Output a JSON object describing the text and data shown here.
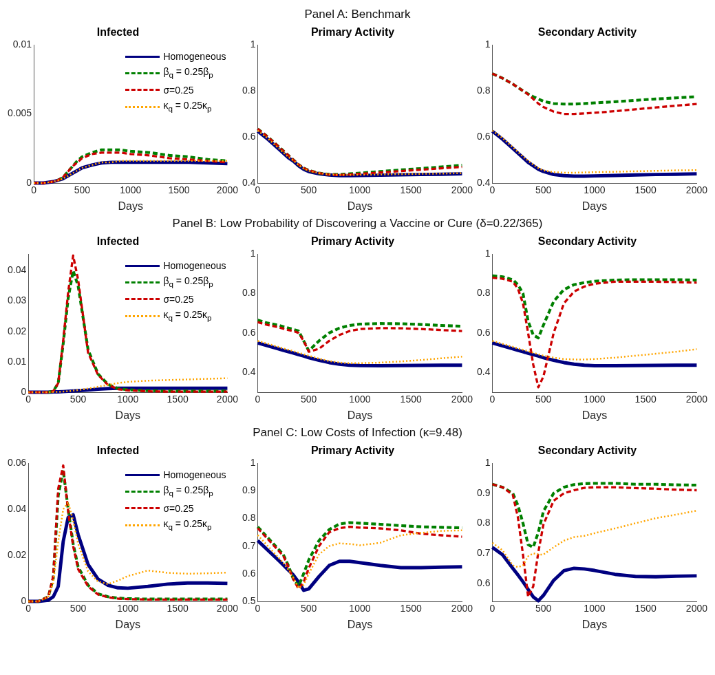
{
  "chart_data": [
    {
      "type": "line",
      "title": "Infected",
      "xlabel": "Days",
      "legend": "top right",
      "xlim": [
        0,
        2000
      ],
      "xticks": [
        0,
        500,
        1000,
        1500,
        2000
      ],
      "ylim": [
        0,
        0.01
      ],
      "yticks": [
        0,
        0.005,
        0.01
      ],
      "x": [
        0,
        100,
        200,
        250,
        300,
        350,
        400,
        450,
        500,
        600,
        700,
        800,
        900,
        1000,
        1200,
        1400,
        1600,
        1800,
        2000
      ],
      "series": [
        {
          "name": "Homogeneous",
          "color": "#000080",
          "line_style": "solid",
          "values": [
            0,
            0,
            0.0001,
            0.0002,
            0.0003,
            0.0005,
            0.0007,
            0.0009,
            0.0011,
            0.0013,
            0.00145,
            0.0015,
            0.0015,
            0.0015,
            0.0015,
            0.0015,
            0.0015,
            0.00145,
            0.0014
          ]
        },
        {
          "name": "β$_{q}$ = 0.25β$_{p}$",
          "color": "#008000",
          "line_style": "dashed",
          "values": [
            null,
            null,
            null,
            0.0002,
            0.0004,
            0.0008,
            0.0012,
            0.0016,
            0.0019,
            0.0022,
            0.0024,
            0.0024,
            0.0024,
            0.0023,
            0.0022,
            0.002,
            0.0019,
            0.0017,
            0.0016
          ]
        },
        {
          "name": "σ=0.25",
          "color": "#cc0000",
          "line_style": "dashed",
          "values": [
            0,
            0,
            0.0001,
            0.0002,
            0.0004,
            0.0008,
            0.0012,
            0.0015,
            0.0018,
            0.0021,
            0.0022,
            0.0022,
            0.0022,
            0.0021,
            0.002,
            0.0018,
            0.0017,
            0.0016,
            0.0015
          ]
        },
        {
          "name": "κ$_{q}$ = 0.25κ$_{p}$",
          "color": "#ffa500",
          "line_style": "dotted",
          "values": [
            0,
            0,
            0.0001,
            0.0002,
            0.0003,
            0.0005,
            0.0007,
            0.0009,
            0.0011,
            0.0013,
            0.0015,
            0.0015,
            0.0016,
            0.0016,
            0.0016,
            0.0016,
            0.0016,
            0.0016,
            0.0016
          ]
        }
      ]
    },
    {
      "type": "line",
      "title": "Primary Activity",
      "subtitle": "Panel A: Benchmark",
      "xlabel": "Days",
      "xlim": [
        0,
        2000
      ],
      "xticks": [
        0,
        500,
        1000,
        1500,
        2000
      ],
      "ylim": [
        0.4,
        1
      ],
      "yticks": [
        0.4,
        0.6,
        0.8,
        1
      ],
      "x": [
        0,
        100,
        200,
        250,
        300,
        350,
        400,
        450,
        500,
        600,
        700,
        800,
        900,
        1000,
        1200,
        1400,
        1600,
        1800,
        2000
      ],
      "series": [
        {
          "color": "#000080",
          "line_style": "solid",
          "values": [
            0.625,
            0.59,
            0.55,
            0.53,
            0.51,
            0.495,
            0.475,
            0.46,
            0.45,
            0.44,
            0.435,
            0.432,
            0.432,
            0.433,
            0.434,
            0.436,
            0.437,
            0.438,
            0.44
          ]
        },
        {
          "color": "#008000",
          "line_style": "dashed",
          "values": [
            0.635,
            0.6,
            0.56,
            0.54,
            0.52,
            0.5,
            0.48,
            0.465,
            0.455,
            0.443,
            0.437,
            0.437,
            0.44,
            0.443,
            0.45,
            0.457,
            0.463,
            0.47,
            0.477
          ]
        },
        {
          "color": "#cc0000",
          "line_style": "dashed",
          "values": [
            0.635,
            0.6,
            0.56,
            0.54,
            0.52,
            0.5,
            0.48,
            0.465,
            0.455,
            0.443,
            0.436,
            0.435,
            0.437,
            0.44,
            0.446,
            0.452,
            0.458,
            0.464,
            0.47
          ]
        },
        {
          "color": "#ffa500",
          "line_style": "dotted",
          "values": [
            0.628,
            0.593,
            0.553,
            0.533,
            0.513,
            0.498,
            0.478,
            0.463,
            0.453,
            0.443,
            0.438,
            0.435,
            0.435,
            0.436,
            0.437,
            0.439,
            0.44,
            0.441,
            0.443
          ]
        }
      ]
    },
    {
      "type": "line",
      "title": "Secondary Activity",
      "xlabel": "Days",
      "xlim": [
        0,
        2000
      ],
      "xticks": [
        0,
        500,
        1000,
        1500,
        2000
      ],
      "ylim": [
        0.4,
        1
      ],
      "yticks": [
        0.4,
        0.6,
        0.8,
        1
      ],
      "x": [
        0,
        100,
        200,
        250,
        300,
        350,
        400,
        450,
        500,
        600,
        700,
        800,
        900,
        1000,
        1200,
        1400,
        1600,
        1800,
        2000
      ],
      "series": [
        {
          "color": "#000080",
          "line_style": "solid",
          "values": [
            0.625,
            0.59,
            0.55,
            0.53,
            0.51,
            0.49,
            0.475,
            0.46,
            0.45,
            0.437,
            0.432,
            0.43,
            0.43,
            0.431,
            0.433,
            0.435,
            0.437,
            0.438,
            0.44
          ]
        },
        {
          "color": "#008000",
          "line_style": "dashed",
          "values": [
            0.875,
            0.855,
            0.83,
            0.815,
            0.8,
            0.787,
            0.775,
            0.765,
            0.755,
            0.745,
            0.743,
            0.743,
            0.745,
            0.748,
            0.753,
            0.759,
            0.765,
            0.77,
            0.775
          ]
        },
        {
          "color": "#cc0000",
          "line_style": "dashed",
          "values": [
            0.875,
            0.855,
            0.83,
            0.815,
            0.8,
            0.785,
            0.765,
            0.745,
            0.73,
            0.71,
            0.7,
            0.7,
            0.702,
            0.705,
            0.712,
            0.72,
            0.728,
            0.736,
            0.743
          ]
        },
        {
          "color": "#ffa500",
          "line_style": "dotted",
          "values": [
            0.628,
            0.595,
            0.555,
            0.535,
            0.515,
            0.497,
            0.48,
            0.465,
            0.455,
            0.447,
            0.445,
            0.445,
            0.446,
            0.447,
            0.449,
            0.451,
            0.453,
            0.455,
            0.456
          ]
        }
      ]
    },
    {
      "type": "line",
      "title": "Infected",
      "xlabel": "Days",
      "legend": "top right",
      "xlim": [
        0,
        2000
      ],
      "xticks": [
        0,
        500,
        1000,
        1500,
        2000
      ],
      "ylim": [
        0,
        0.0455
      ],
      "yticks": [
        0,
        0.01,
        0.02,
        0.03,
        0.04
      ],
      "x": [
        0,
        100,
        200,
        250,
        300,
        350,
        400,
        450,
        500,
        600,
        700,
        800,
        900,
        1000,
        1200,
        1400,
        1600,
        1800,
        2000
      ],
      "series": [
        {
          "name": "Homogeneous",
          "color": "#000080",
          "line_style": "solid",
          "values": [
            0,
            0,
            0,
            0.0001,
            0.0001,
            0.0002,
            0.0003,
            0.0004,
            0.0005,
            0.0007,
            0.001,
            0.0012,
            0.0013,
            0.0013,
            0.0013,
            0.0013,
            0.0013,
            0.0013,
            0.0013
          ]
        },
        {
          "name": "β$_{q}$ = 0.25β$_{p}$",
          "color": "#008000",
          "line_style": "dashed",
          "values": [
            null,
            null,
            0,
            0.0003,
            0.003,
            0.016,
            0.031,
            0.04,
            0.035,
            0.014,
            0.006,
            0.0026,
            0.0012,
            0.0008,
            0.0005,
            0.0004,
            0.0004,
            0.0004,
            0.0004
          ]
        },
        {
          "name": "σ=0.25",
          "color": "#cc0000",
          "line_style": "dashed",
          "values": [
            0,
            0,
            0,
            0.0003,
            0.003,
            0.017,
            0.033,
            0.045,
            0.037,
            0.013,
            0.0057,
            0.0024,
            0.001,
            0.0006,
            0.0003,
            0.0002,
            0.0002,
            0.0002,
            0.0002
          ]
        },
        {
          "name": "κ$_{q}$ = 0.25κ$_{p}$",
          "color": "#ffa500",
          "line_style": "dotted",
          "values": [
            0,
            0,
            0,
            0.0001,
            0.0001,
            0.0002,
            0.0003,
            0.0005,
            0.0007,
            0.0012,
            0.0018,
            0.0024,
            0.003,
            0.0034,
            0.0038,
            0.004,
            0.0042,
            0.0044,
            0.0046
          ]
        }
      ]
    },
    {
      "type": "line",
      "title": "Primary Activity",
      "subtitle": "Panel B: Low Probability of Discovering a Vaccine or Cure (δ=0.22/365)",
      "xlabel": "Days",
      "xlim": [
        0,
        2000
      ],
      "xticks": [
        0,
        500,
        1000,
        1500,
        2000
      ],
      "ylim": [
        0.3,
        1
      ],
      "yticks": [
        0.4,
        0.6,
        0.8,
        1
      ],
      "x": [
        0,
        100,
        200,
        250,
        300,
        350,
        400,
        450,
        500,
        600,
        700,
        800,
        900,
        1000,
        1200,
        1400,
        1600,
        1800,
        2000
      ],
      "series": [
        {
          "color": "#000080",
          "line_style": "solid",
          "values": [
            0.55,
            0.535,
            0.52,
            0.512,
            0.505,
            0.498,
            0.49,
            0.483,
            0.475,
            0.462,
            0.45,
            0.442,
            0.437,
            0.435,
            0.434,
            0.435,
            0.436,
            0.437,
            0.437
          ]
        },
        {
          "color": "#008000",
          "line_style": "dashed",
          "values": [
            0.665,
            0.65,
            0.64,
            0.632,
            0.625,
            0.618,
            0.61,
            0.56,
            0.51,
            0.56,
            0.6,
            0.625,
            0.638,
            0.645,
            0.648,
            0.647,
            0.643,
            0.638,
            0.634
          ]
        },
        {
          "color": "#cc0000",
          "line_style": "dashed",
          "values": [
            0.655,
            0.64,
            0.63,
            0.622,
            0.615,
            0.61,
            0.6,
            0.56,
            0.505,
            0.52,
            0.56,
            0.59,
            0.61,
            0.62,
            0.625,
            0.624,
            0.62,
            0.615,
            0.61
          ]
        },
        {
          "color": "#ffa500",
          "line_style": "dotted",
          "values": [
            0.56,
            0.545,
            0.53,
            0.522,
            0.515,
            0.508,
            0.5,
            0.492,
            0.485,
            0.47,
            0.458,
            0.45,
            0.447,
            0.447,
            0.45,
            0.456,
            0.463,
            0.472,
            0.48
          ]
        }
      ]
    },
    {
      "type": "line",
      "title": "Secondary Activity",
      "xlabel": "Days",
      "xlim": [
        0,
        2000
      ],
      "xticks": [
        0,
        500,
        1000,
        1500,
        2000
      ],
      "ylim": [
        0.3,
        1
      ],
      "yticks": [
        0.4,
        0.6,
        0.8,
        1
      ],
      "x": [
        0,
        100,
        200,
        250,
        300,
        350,
        400,
        450,
        500,
        600,
        700,
        800,
        900,
        1000,
        1200,
        1400,
        1600,
        1800,
        2000
      ],
      "series": [
        {
          "color": "#000080",
          "line_style": "solid",
          "values": [
            0.55,
            0.535,
            0.52,
            0.512,
            0.505,
            0.497,
            0.49,
            0.483,
            0.475,
            0.462,
            0.45,
            0.442,
            0.437,
            0.434,
            0.434,
            0.435,
            0.436,
            0.437,
            0.437
          ]
        },
        {
          "color": "#008000",
          "line_style": "dashed",
          "values": [
            0.89,
            0.885,
            0.87,
            0.845,
            0.8,
            0.66,
            0.59,
            0.575,
            0.64,
            0.76,
            0.82,
            0.845,
            0.855,
            0.862,
            0.868,
            0.87,
            0.87,
            0.87,
            0.868
          ]
        },
        {
          "color": "#cc0000",
          "line_style": "dashed",
          "values": [
            0.88,
            0.875,
            0.86,
            0.825,
            0.75,
            0.6,
            0.44,
            0.325,
            0.38,
            0.6,
            0.75,
            0.81,
            0.835,
            0.85,
            0.86,
            0.86,
            0.86,
            0.858,
            0.855
          ]
        },
        {
          "color": "#ffa500",
          "line_style": "dotted",
          "values": [
            0.56,
            0.545,
            0.53,
            0.522,
            0.515,
            0.508,
            0.5,
            0.492,
            0.485,
            0.475,
            0.468,
            0.466,
            0.466,
            0.468,
            0.475,
            0.485,
            0.495,
            0.505,
            0.518
          ]
        }
      ]
    },
    {
      "type": "line",
      "title": "Infected",
      "xlabel": "Days",
      "legend": "top right",
      "xlim": [
        0,
        2000
      ],
      "xticks": [
        0,
        500,
        1000,
        1500,
        2000
      ],
      "ylim": [
        0,
        0.06
      ],
      "yticks": [
        0,
        0.02,
        0.04,
        0.06
      ],
      "x": [
        0,
        100,
        200,
        250,
        300,
        350,
        400,
        450,
        500,
        600,
        700,
        800,
        900,
        1000,
        1200,
        1400,
        1600,
        1800,
        2000
      ],
      "series": [
        {
          "name": "Homogeneous",
          "color": "#000080",
          "line_style": "solid",
          "values": [
            0,
            0,
            0.0005,
            0.002,
            0.0065,
            0.026,
            0.0365,
            0.0376,
            0.029,
            0.016,
            0.0097,
            0.007,
            0.0059,
            0.0057,
            0.0065,
            0.0075,
            0.008,
            0.008,
            0.0078
          ]
        },
        {
          "name": "β$_{q}$ = 0.25β$_{p}$",
          "color": "#008000",
          "line_style": "dashed",
          "values": [
            0,
            0,
            0.002,
            0.01,
            0.046,
            0.057,
            0.04,
            0.025,
            0.015,
            0.007,
            0.0033,
            0.002,
            0.0014,
            0.0012,
            0.001,
            0.001,
            0.001,
            0.001,
            0.001
          ]
        },
        {
          "name": "σ=0.25",
          "color": "#cc0000",
          "line_style": "dashed",
          "values": [
            0,
            0,
            0.002,
            0.011,
            0.049,
            0.059,
            0.039,
            0.024,
            0.014,
            0.0065,
            0.003,
            0.0018,
            0.0012,
            0.001,
            0.0008,
            0.0008,
            0.0008,
            0.0008,
            0.0008
          ]
        },
        {
          "name": "κ$_{q}$ = 0.25κ$_{p}$",
          "color": "#ffa500",
          "line_style": "dotted",
          "values": [
            0,
            0,
            0.002,
            0.008,
            0.026,
            0.04,
            0.043,
            0.035,
            0.025,
            0.013,
            0.0086,
            0.0075,
            0.009,
            0.011,
            0.0134,
            0.0124,
            0.012,
            0.0122,
            0.0125
          ]
        }
      ]
    },
    {
      "type": "line",
      "title": "Primary Activity",
      "subtitle": "Panel C: Low Costs of Infection (κ=9.48)",
      "xlabel": "Days",
      "xlim": [
        0,
        2000
      ],
      "xticks": [
        0,
        500,
        1000,
        1500,
        2000
      ],
      "ylim": [
        0.5,
        1
      ],
      "yticks": [
        0.5,
        0.6,
        0.7,
        0.8,
        0.9,
        1
      ],
      "x": [
        0,
        100,
        200,
        250,
        300,
        350,
        400,
        450,
        500,
        600,
        700,
        800,
        900,
        1000,
        1200,
        1400,
        1600,
        1800,
        2000
      ],
      "series": [
        {
          "color": "#000080",
          "line_style": "solid",
          "values": [
            0.72,
            0.685,
            0.65,
            0.632,
            0.613,
            0.595,
            0.57,
            0.54,
            0.545,
            0.59,
            0.63,
            0.645,
            0.645,
            0.64,
            0.63,
            0.622,
            0.622,
            0.624,
            0.625
          ]
        },
        {
          "color": "#008000",
          "line_style": "dashed",
          "values": [
            0.77,
            0.73,
            0.69,
            0.67,
            0.63,
            0.58,
            0.555,
            0.6,
            0.65,
            0.72,
            0.76,
            0.78,
            0.785,
            0.783,
            0.779,
            0.774,
            0.77,
            0.768,
            0.766
          ]
        },
        {
          "color": "#cc0000",
          "line_style": "dashed",
          "values": [
            0.765,
            0.725,
            0.685,
            0.665,
            0.625,
            0.58,
            0.545,
            0.57,
            0.62,
            0.7,
            0.75,
            0.765,
            0.77,
            0.767,
            0.764,
            0.757,
            0.745,
            0.739,
            0.734
          ]
        },
        {
          "color": "#ffa500",
          "line_style": "dotted",
          "values": [
            0.74,
            0.7,
            0.66,
            0.64,
            0.615,
            0.585,
            0.548,
            0.56,
            0.6,
            0.67,
            0.7,
            0.71,
            0.708,
            0.703,
            0.712,
            0.739,
            0.748,
            0.755,
            0.757
          ]
        }
      ]
    },
    {
      "type": "line",
      "title": "Secondary Activity",
      "xlabel": "Days",
      "xlim": [
        0,
        2000
      ],
      "xticks": [
        0,
        500,
        1000,
        1500,
        2000
      ],
      "ylim": [
        0.54,
        1
      ],
      "yticks": [
        0.6,
        0.7,
        0.8,
        0.9,
        1
      ],
      "x": [
        0,
        100,
        200,
        250,
        300,
        350,
        400,
        450,
        500,
        600,
        700,
        800,
        900,
        1000,
        1200,
        1400,
        1600,
        1800,
        2000
      ],
      "series": [
        {
          "color": "#000080",
          "line_style": "solid",
          "values": [
            0.72,
            0.695,
            0.65,
            0.628,
            0.605,
            0.58,
            0.555,
            0.542,
            0.56,
            0.61,
            0.642,
            0.65,
            0.648,
            0.643,
            0.63,
            0.623,
            0.622,
            0.624,
            0.625
          ]
        },
        {
          "color": "#008000",
          "line_style": "dashed",
          "values": [
            0.93,
            0.92,
            0.9,
            0.86,
            0.8,
            0.729,
            0.72,
            0.77,
            0.84,
            0.9,
            0.92,
            0.929,
            0.932,
            0.933,
            0.933,
            0.93,
            0.93,
            0.928,
            0.927
          ]
        },
        {
          "color": "#cc0000",
          "line_style": "dashed",
          "values": [
            0.93,
            0.92,
            0.895,
            0.82,
            0.695,
            0.555,
            0.59,
            0.704,
            0.796,
            0.875,
            0.9,
            0.91,
            0.918,
            0.92,
            0.92,
            0.917,
            0.915,
            0.912,
            0.91
          ]
        },
        {
          "color": "#ffa500",
          "line_style": "dotted",
          "values": [
            0.735,
            0.71,
            0.66,
            0.654,
            0.66,
            0.69,
            0.7,
            0.696,
            0.696,
            0.72,
            0.742,
            0.754,
            0.758,
            0.767,
            0.783,
            0.8,
            0.817,
            0.829,
            0.842
          ]
        }
      ]
    }
  ]
}
